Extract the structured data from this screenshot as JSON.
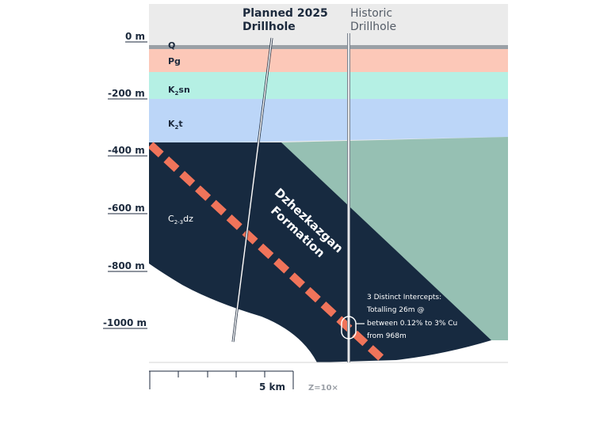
{
  "section": {
    "depth_labels": [
      "0 m",
      "-200 m",
      "-400 m",
      "-600 m",
      "-800 m",
      "-1000 m"
    ],
    "units": {
      "q": "Q",
      "pg": "Pg",
      "k2sn_main": "K",
      "k2sn_sub": "2",
      "k2sn_rest": "sn",
      "k2t_main": "K",
      "k2t_sub": "2",
      "k2t_rest": "t",
      "c_main": "C",
      "c_sub": "2-3",
      "c_rest": "dz"
    },
    "planned_hole": {
      "line1": "Planned 2025",
      "line2": "Drillhole"
    },
    "historic_hole": {
      "line1": "Historic",
      "line2": "Drillhole"
    },
    "formation": {
      "line1": "Dzhezkazgan",
      "line2": "Formation"
    },
    "intercept_note": [
      "3 Distinct Intercepts:",
      "Totalling 26m @",
      "between 0.12% to 3% Cu",
      "from 968m"
    ],
    "scale_bar": {
      "label": "5 km",
      "exaggeration": "Z=10×"
    },
    "colors": {
      "sky": "#ebebeb",
      "quaternary": "#9aa0a6",
      "paleogene": "#fcc8b8",
      "k2sn": "#b5f0e4",
      "k2t": "#bcd6f8",
      "dzhezkazgan": "#172a40",
      "green_block": "#96c0b3",
      "ore_horizon": "#f0745a"
    }
  }
}
